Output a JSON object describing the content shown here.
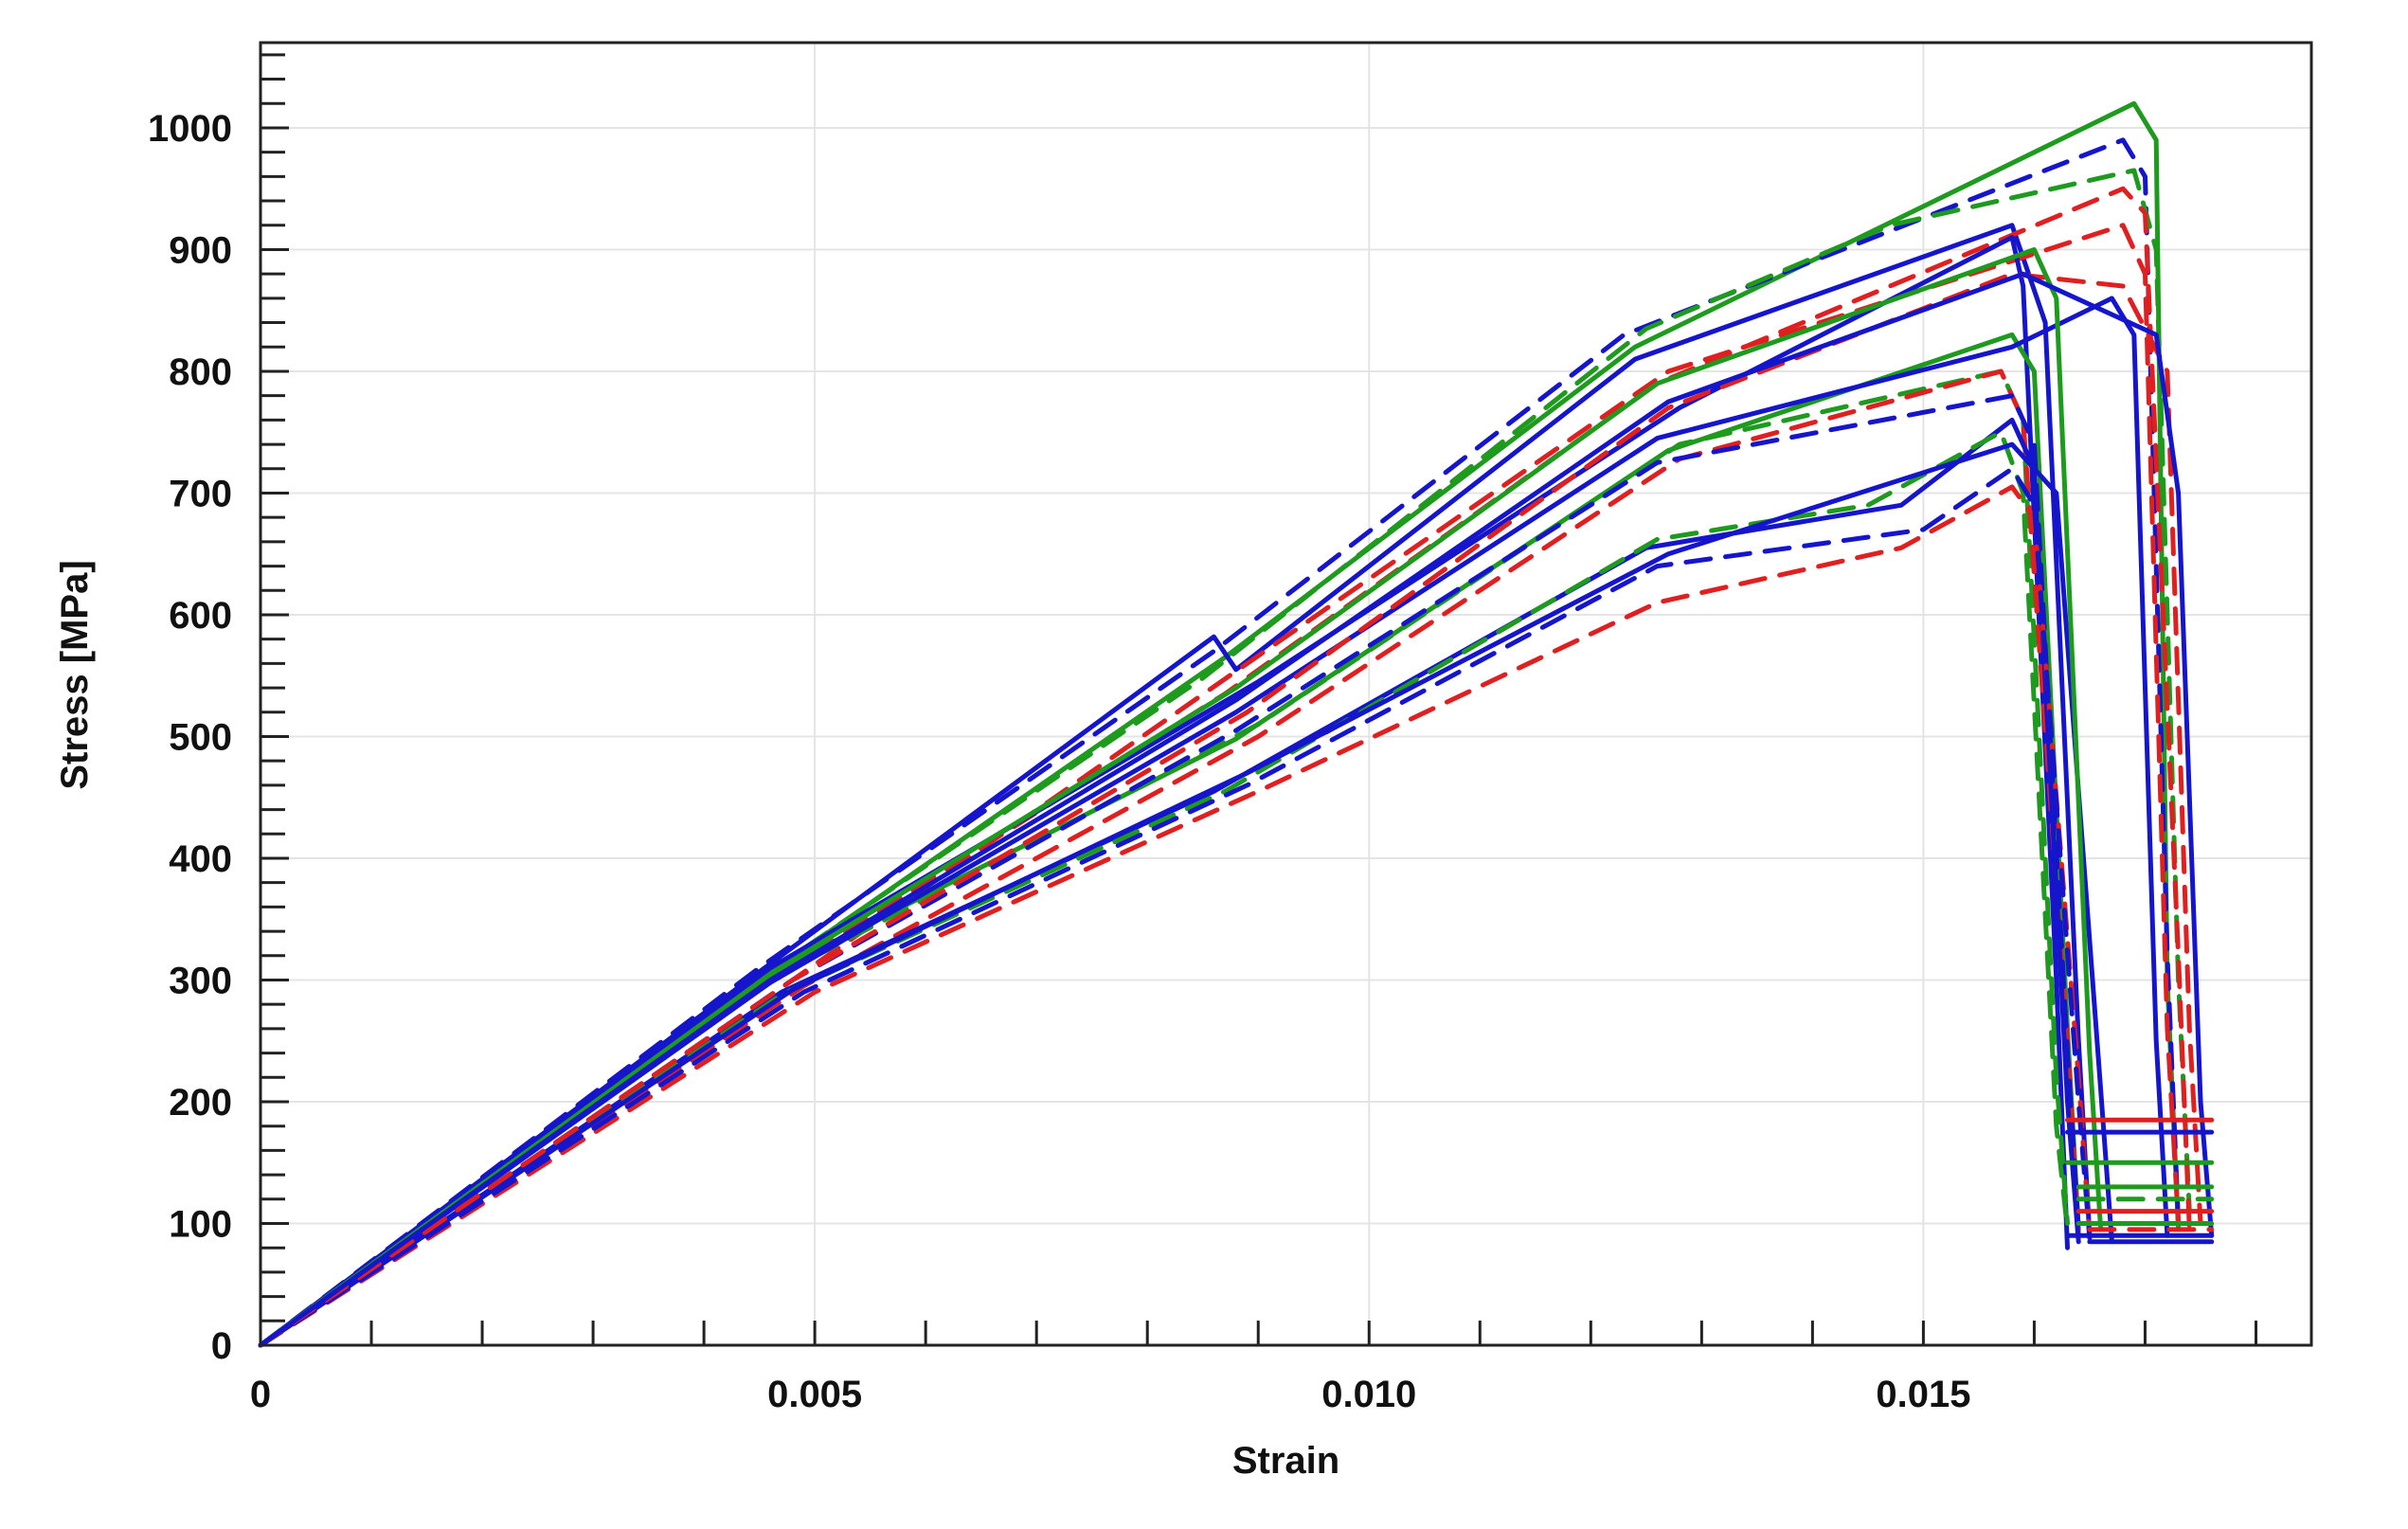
{
  "chart_data": {
    "type": "line",
    "title": "",
    "xlabel": "Strain",
    "ylabel": "Stress [MPa]",
    "xlim": [
      0,
      0.0185
    ],
    "ylim": [
      0,
      1070
    ],
    "x_ticks": [
      {
        "value": 0,
        "label": "0"
      },
      {
        "value": 0.005,
        "label": "0.005"
      },
      {
        "value": 0.01,
        "label": "0.010"
      },
      {
        "value": 0.015,
        "label": "0.015"
      }
    ],
    "y_ticks": [
      {
        "value": 0,
        "label": "0"
      },
      {
        "value": 100,
        "label": "100"
      },
      {
        "value": 200,
        "label": "200"
      },
      {
        "value": 300,
        "label": "300"
      },
      {
        "value": 400,
        "label": "400"
      },
      {
        "value": 500,
        "label": "500"
      },
      {
        "value": 600,
        "label": "600"
      },
      {
        "value": 700,
        "label": "700"
      },
      {
        "value": 800,
        "label": "800"
      },
      {
        "value": 900,
        "label": "900"
      },
      {
        "value": 1000,
        "label": "1000"
      }
    ],
    "grid": true,
    "legend": "none",
    "colors": {
      "blue": "#1515cc",
      "green": "#1e9a1e",
      "red": "#e02020"
    },
    "series": [
      {
        "color": "green",
        "dash": false,
        "points": [
          [
            0,
            0
          ],
          [
            0.0045,
            300
          ],
          [
            0.0087,
            565
          ],
          [
            0.0124,
            820
          ],
          [
            0.0169,
            1020
          ],
          [
            0.0171,
            990
          ],
          [
            0.0172,
            300
          ],
          [
            0.0173,
            95
          ]
        ]
      },
      {
        "color": "blue",
        "dash": true,
        "points": [
          [
            0,
            0
          ],
          [
            0.0045,
            310
          ],
          [
            0.0086,
            570
          ],
          [
            0.0123,
            830
          ],
          [
            0.0168,
            990
          ],
          [
            0.017,
            960
          ],
          [
            0.0172,
            320
          ],
          [
            0.0173,
            100
          ]
        ]
      },
      {
        "color": "blue",
        "dash": false,
        "points": [
          [
            0,
            0
          ],
          [
            0.0044,
            300
          ],
          [
            0.0086,
            582
          ],
          [
            0.0088,
            555
          ],
          [
            0.0124,
            810
          ],
          [
            0.0158,
            920
          ],
          [
            0.0161,
            840
          ],
          [
            0.0164,
            250
          ],
          [
            0.0165,
            90
          ]
        ]
      },
      {
        "color": "green",
        "dash": true,
        "points": [
          [
            0,
            0
          ],
          [
            0.0044,
            295
          ],
          [
            0.0085,
            548
          ],
          [
            0.0125,
            835
          ],
          [
            0.0147,
            920
          ],
          [
            0.0169,
            965
          ],
          [
            0.0171,
            900
          ],
          [
            0.0173,
            300
          ],
          [
            0.0174,
            110
          ]
        ]
      },
      {
        "color": "red",
        "dash": true,
        "points": [
          [
            0,
            0
          ],
          [
            0.0046,
            300
          ],
          [
            0.0087,
            535
          ],
          [
            0.0126,
            790
          ],
          [
            0.0168,
            950
          ],
          [
            0.017,
            930
          ],
          [
            0.0173,
            320
          ],
          [
            0.0174,
            95
          ]
        ]
      },
      {
        "color": "red",
        "dash": true,
        "points": [
          [
            0,
            0
          ],
          [
            0.0048,
            300
          ],
          [
            0.0089,
            560
          ],
          [
            0.0127,
            800
          ],
          [
            0.0168,
            920
          ],
          [
            0.017,
            880
          ],
          [
            0.0172,
            260
          ],
          [
            0.0173,
            100
          ]
        ]
      },
      {
        "color": "blue",
        "dash": false,
        "points": [
          [
            0,
            0
          ],
          [
            0.0046,
            310
          ],
          [
            0.009,
            545
          ],
          [
            0.0128,
            770
          ],
          [
            0.0158,
            910
          ],
          [
            0.0159,
            870
          ],
          [
            0.0162,
            300
          ],
          [
            0.0163,
            80
          ]
        ]
      },
      {
        "color": "green",
        "dash": false,
        "points": [
          [
            0,
            0
          ],
          [
            0.0047,
            310
          ],
          [
            0.0088,
            498
          ],
          [
            0.0127,
            735
          ],
          [
            0.0158,
            830
          ],
          [
            0.016,
            800
          ],
          [
            0.0163,
            260
          ],
          [
            0.0164,
            95
          ]
        ]
      },
      {
        "color": "green",
        "dash": true,
        "points": [
          [
            0,
            0
          ],
          [
            0.0047,
            305
          ],
          [
            0.009,
            510
          ],
          [
            0.0128,
            740
          ],
          [
            0.0157,
            800
          ],
          [
            0.0159,
            760
          ],
          [
            0.0162,
            220
          ],
          [
            0.0163,
            100
          ]
        ]
      },
      {
        "color": "blue",
        "dash": false,
        "points": [
          [
            0,
            0
          ],
          [
            0.0046,
            298
          ],
          [
            0.0088,
            520
          ],
          [
            0.0126,
            745
          ],
          [
            0.0158,
            820
          ],
          [
            0.0167,
            860
          ],
          [
            0.0169,
            830
          ],
          [
            0.0171,
            250
          ],
          [
            0.0172,
            90
          ]
        ]
      },
      {
        "color": "red",
        "dash": true,
        "points": [
          [
            0,
            0
          ],
          [
            0.0049,
            295
          ],
          [
            0.009,
            500
          ],
          [
            0.0128,
            728
          ],
          [
            0.0157,
            800
          ],
          [
            0.0159,
            760
          ],
          [
            0.0163,
            250
          ],
          [
            0.0164,
            90
          ]
        ]
      },
      {
        "color": "blue",
        "dash": true,
        "points": [
          [
            0,
            0
          ],
          [
            0.0048,
            300
          ],
          [
            0.0088,
            505
          ],
          [
            0.0126,
            725
          ],
          [
            0.0158,
            780
          ],
          [
            0.016,
            740
          ],
          [
            0.0163,
            240
          ],
          [
            0.0164,
            95
          ]
        ]
      },
      {
        "color": "blue",
        "dash": false,
        "points": [
          [
            0,
            0
          ],
          [
            0.0047,
            290
          ],
          [
            0.0086,
            455
          ],
          [
            0.0125,
            655
          ],
          [
            0.0148,
            690
          ],
          [
            0.0158,
            760
          ],
          [
            0.016,
            720
          ],
          [
            0.0163,
            200
          ],
          [
            0.0164,
            85
          ]
        ]
      },
      {
        "color": "green",
        "dash": true,
        "points": [
          [
            0,
            0
          ],
          [
            0.0047,
            288
          ],
          [
            0.0087,
            455
          ],
          [
            0.0126,
            662
          ],
          [
            0.0145,
            690
          ],
          [
            0.0157,
            750
          ],
          [
            0.0159,
            700
          ],
          [
            0.0162,
            180
          ],
          [
            0.0163,
            95
          ]
        ]
      },
      {
        "color": "red",
        "dash": true,
        "points": [
          [
            0,
            0
          ],
          [
            0.005,
            290
          ],
          [
            0.009,
            455
          ],
          [
            0.0126,
            610
          ],
          [
            0.0148,
            655
          ],
          [
            0.0158,
            705
          ],
          [
            0.016,
            680
          ],
          [
            0.0164,
            220
          ],
          [
            0.0165,
            90
          ]
        ]
      },
      {
        "color": "blue",
        "dash": true,
        "points": [
          [
            0,
            0
          ],
          [
            0.0049,
            290
          ],
          [
            0.0089,
            460
          ],
          [
            0.0126,
            640
          ],
          [
            0.015,
            670
          ],
          [
            0.0158,
            720
          ],
          [
            0.016,
            690
          ],
          [
            0.0164,
            200
          ],
          [
            0.0165,
            88
          ]
        ]
      },
      {
        "color": "blue",
        "dash": false,
        "points": [
          [
            0,
            0
          ],
          [
            0.0048,
            292
          ],
          [
            0.0089,
            470
          ],
          [
            0.0127,
            650
          ],
          [
            0.0158,
            740
          ],
          [
            0.0162,
            700
          ],
          [
            0.0166,
            210
          ],
          [
            0.0167,
            85
          ]
        ]
      },
      {
        "color": "red",
        "dash": true,
        "points": [
          [
            0,
            0
          ],
          [
            0.0048,
            300
          ],
          [
            0.0089,
            520
          ],
          [
            0.0127,
            770
          ],
          [
            0.0158,
            880
          ],
          [
            0.0168,
            870
          ],
          [
            0.0172,
            800
          ],
          [
            0.0174,
            260
          ],
          [
            0.0175,
            100
          ]
        ]
      },
      {
        "color": "green",
        "dash": false,
        "points": [
          [
            0,
            0
          ],
          [
            0.0046,
            305
          ],
          [
            0.0088,
            540
          ],
          [
            0.0126,
            790
          ],
          [
            0.016,
            900
          ],
          [
            0.0162,
            860
          ],
          [
            0.0165,
            240
          ],
          [
            0.0166,
            95
          ]
        ]
      },
      {
        "color": "blue",
        "dash": false,
        "points": [
          [
            0,
            0
          ],
          [
            0.0046,
            300
          ],
          [
            0.0088,
            530
          ],
          [
            0.0127,
            775
          ],
          [
            0.0159,
            880
          ],
          [
            0.0171,
            830
          ],
          [
            0.0173,
            700
          ],
          [
            0.0175,
            200
          ],
          [
            0.0176,
            90
          ]
        ]
      }
    ],
    "tail_segments": [
      {
        "color": "red",
        "dash": false,
        "points": [
          [
            0.0163,
            185
          ],
          [
            0.0176,
            185
          ]
        ]
      },
      {
        "color": "blue",
        "dash": false,
        "points": [
          [
            0.0163,
            175
          ],
          [
            0.0176,
            175
          ]
        ]
      },
      {
        "color": "green",
        "dash": false,
        "points": [
          [
            0.0163,
            150
          ],
          [
            0.0176,
            150
          ]
        ]
      },
      {
        "color": "green",
        "dash": false,
        "points": [
          [
            0.0164,
            130
          ],
          [
            0.0176,
            130
          ]
        ]
      },
      {
        "color": "red",
        "dash": false,
        "points": [
          [
            0.0164,
            110
          ],
          [
            0.0176,
            110
          ]
        ]
      },
      {
        "color": "green",
        "dash": false,
        "points": [
          [
            0.0164,
            100
          ],
          [
            0.0176,
            100
          ]
        ]
      },
      {
        "color": "blue",
        "dash": false,
        "points": [
          [
            0.0163,
            90
          ],
          [
            0.0176,
            90
          ]
        ]
      },
      {
        "color": "blue",
        "dash": false,
        "points": [
          [
            0.0165,
            85
          ],
          [
            0.0176,
            85
          ]
        ]
      },
      {
        "color": "green",
        "dash": true,
        "points": [
          [
            0.0164,
            120
          ],
          [
            0.0176,
            120
          ]
        ]
      },
      {
        "color": "red",
        "dash": true,
        "points": [
          [
            0.0165,
            95
          ],
          [
            0.0176,
            95
          ]
        ]
      }
    ]
  }
}
